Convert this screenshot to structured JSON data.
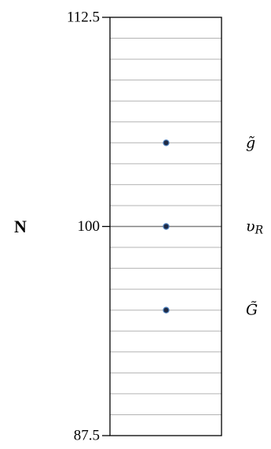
{
  "chart_data": {
    "type": "scatter",
    "ylabel": "N",
    "ylim": [
      87.5,
      112.5
    ],
    "y_ticks": [
      "112.5",
      "100",
      "87.5"
    ],
    "grid_step": 1.25,
    "grid": true,
    "points": [
      {
        "y": 105,
        "label": "g̃"
      },
      {
        "y": 100,
        "label": "υ_R"
      },
      {
        "y": 95,
        "label": "G̃"
      }
    ],
    "colors": {
      "marker_fill": "#1f2a44",
      "marker_edge": "#4f81bd",
      "grid": "#b3b3b3",
      "center_line": "#808080",
      "frame": "#000000"
    }
  }
}
